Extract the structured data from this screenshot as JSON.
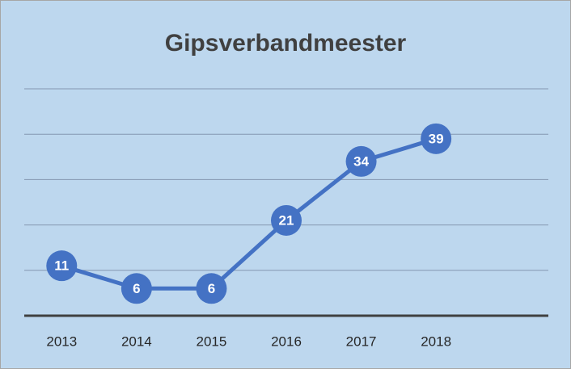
{
  "chart_data": {
    "type": "line",
    "title": "Gipsverbandmeester",
    "categories": [
      "2013",
      "2014",
      "2015",
      "2016",
      "2017",
      "2018",
      null
    ],
    "series": [
      {
        "name": "Gipsverbandmeester",
        "color": "#4472c4",
        "values": [
          11,
          6,
          6,
          21,
          34,
          39,
          null
        ]
      }
    ],
    "ylim": [
      0,
      50
    ],
    "yticks": [
      0,
      10,
      20,
      30,
      40,
      50
    ],
    "grid": true,
    "background": "#bdd7ee"
  }
}
